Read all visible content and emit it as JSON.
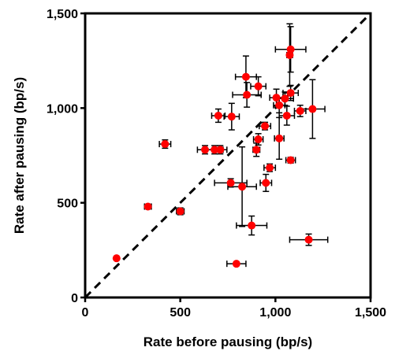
{
  "chart_data": {
    "type": "scatter",
    "xlabel": "Rate before pausing (bp/s)",
    "ylabel": "Rate after pausing (bp/s)",
    "xlim": [
      0,
      1500
    ],
    "ylim": [
      0,
      1500
    ],
    "x_ticks": [
      0,
      500,
      1000,
      1500
    ],
    "y_ticks": [
      0,
      500,
      1000,
      1500
    ],
    "x_tick_labels": [
      "0",
      "500",
      "1,000",
      "1,500"
    ],
    "y_tick_labels": [
      "0",
      "500",
      "1,000",
      "1,500"
    ],
    "grid": false,
    "reference_line": {
      "style": "dashed",
      "from": [
        0,
        0
      ],
      "to": [
        1500,
        1500
      ]
    },
    "marker_color": "#ff0000",
    "points": [
      {
        "x": 165,
        "y": 207,
        "xerr": 0,
        "yerr": 0
      },
      {
        "x": 330,
        "y": 480,
        "xerr": 18,
        "yerr": 12
      },
      {
        "x": 420,
        "y": 810,
        "xerr": 30,
        "yerr": 22
      },
      {
        "x": 500,
        "y": 455,
        "xerr": 20,
        "yerr": 18
      },
      {
        "x": 630,
        "y": 780,
        "xerr": 40,
        "yerr": 22
      },
      {
        "x": 680,
        "y": 780,
        "xerr": 45,
        "yerr": 22
      },
      {
        "x": 710,
        "y": 780,
        "xerr": 35,
        "yerr": 22
      },
      {
        "x": 700,
        "y": 960,
        "xerr": 35,
        "yerr": 35
      },
      {
        "x": 770,
        "y": 955,
        "xerr": 40,
        "yerr": 70
      },
      {
        "x": 765,
        "y": 605,
        "xerr": 85,
        "yerr": 22
      },
      {
        "x": 795,
        "y": 178,
        "xerr": 50,
        "yerr": 0
      },
      {
        "x": 825,
        "y": 585,
        "xerr": 75,
        "yerr": 210
      },
      {
        "x": 845,
        "y": 1165,
        "xerr": 55,
        "yerr": 110
      },
      {
        "x": 850,
        "y": 1070,
        "xerr": 75,
        "yerr": 65
      },
      {
        "x": 875,
        "y": 380,
        "xerr": 80,
        "yerr": 50
      },
      {
        "x": 900,
        "y": 780,
        "xerr": 18,
        "yerr": 35
      },
      {
        "x": 910,
        "y": 835,
        "xerr": 25,
        "yerr": 30
      },
      {
        "x": 910,
        "y": 1115,
        "xerr": 40,
        "yerr": 50
      },
      {
        "x": 945,
        "y": 905,
        "xerr": 30,
        "yerr": 20
      },
      {
        "x": 950,
        "y": 605,
        "xerr": 30,
        "yerr": 45
      },
      {
        "x": 970,
        "y": 685,
        "xerr": 30,
        "yerr": 20
      },
      {
        "x": 1005,
        "y": 1055,
        "xerr": 35,
        "yerr": 45
      },
      {
        "x": 1020,
        "y": 840,
        "xerr": 25,
        "yerr": 110
      },
      {
        "x": 1020,
        "y": 1015,
        "xerr": 30,
        "yerr": 40
      },
      {
        "x": 1050,
        "y": 1050,
        "xerr": 45,
        "yerr": 35
      },
      {
        "x": 1060,
        "y": 960,
        "xerr": 40,
        "yerr": 50
      },
      {
        "x": 1080,
        "y": 1080,
        "xerr": 40,
        "yerr": 40
      },
      {
        "x": 1080,
        "y": 725,
        "xerr": 25,
        "yerr": 15
      },
      {
        "x": 1075,
        "y": 1280,
        "xerr": 15,
        "yerr": 165
      },
      {
        "x": 1080,
        "y": 1310,
        "xerr": 80,
        "yerr": 120
      },
      {
        "x": 1130,
        "y": 985,
        "xerr": 30,
        "yerr": 30
      },
      {
        "x": 1175,
        "y": 305,
        "xerr": 100,
        "yerr": 30
      },
      {
        "x": 1195,
        "y": 995,
        "xerr": 65,
        "yerr": 155
      }
    ]
  }
}
